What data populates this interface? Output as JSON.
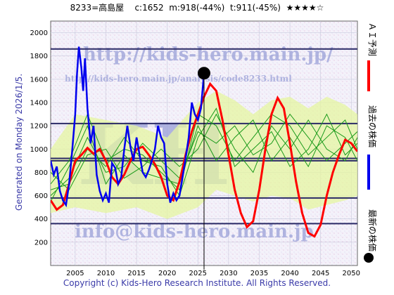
{
  "header": {
    "code_name": "8233=高島屋",
    "current": "c:1652",
    "max_stat": "m:918(-44%)",
    "target_stat": "t:911(-45%)",
    "stars": "★★★★☆"
  },
  "side_label": "Generated on Monday 2026/1/5.",
  "footer": "Copyright (c) Kids-Hero Research Institute. All Rights Reserved.",
  "watermarks": {
    "url_main": "http://kids-hero.main.jp/",
    "url_analysis": "http://kids-hero.main.jp/analysis/code8233.html",
    "logo": "KH",
    "email": "info@kids-hero.main.jp"
  },
  "legend": {
    "ai_forecast": "ＡＩ予測",
    "past_price": "過去の株価",
    "latest_price": "最新の株価"
  },
  "colors": {
    "past": "#0000ee",
    "ai": "#ff0000",
    "green": "#1a9a1a",
    "band": "#e6f5a0",
    "hline": "#2a2a66",
    "dot": "#000000"
  },
  "chart_data": {
    "type": "line",
    "title": "",
    "xlabel": "",
    "ylabel": "",
    "xlim": [
      2001,
      2051
    ],
    "ylim": [
      0,
      2100
    ],
    "x_ticks": [
      2005,
      2010,
      2015,
      2020,
      2025,
      2030,
      2035,
      2040,
      2045,
      2050
    ],
    "y_ticks": [
      200,
      400,
      600,
      800,
      1000,
      1200,
      1400,
      1600,
      1800,
      2000
    ],
    "horizontal_lines": [
      360,
      580,
      900,
      920,
      1220,
      1860
    ],
    "latest_point": {
      "x": 2026.0,
      "y": 1652
    },
    "now_line_x": 2026.0,
    "series": [
      {
        "name": "過去の株価",
        "x": [
          2001.0,
          2001.5,
          2002.0,
          2002.5,
          2003.0,
          2003.5,
          2004.0,
          2004.5,
          2005.0,
          2005.3,
          2005.6,
          2006.0,
          2006.3,
          2006.6,
          2007.0,
          2007.5,
          2008.0,
          2008.5,
          2009.0,
          2009.5,
          2010.0,
          2010.5,
          2011.0,
          2011.5,
          2012.0,
          2012.5,
          2013.0,
          2013.5,
          2014.0,
          2014.5,
          2015.0,
          2015.5,
          2016.0,
          2016.5,
          2017.0,
          2017.5,
          2018.0,
          2018.5,
          2019.0,
          2019.5,
          2020.0,
          2020.5,
          2021.0,
          2021.5,
          2022.0,
          2022.5,
          2023.0,
          2023.5,
          2024.0,
          2024.5,
          2025.0,
          2025.5,
          2026.0
        ],
        "y": [
          900,
          780,
          850,
          640,
          560,
          520,
          700,
          980,
          1300,
          1650,
          1880,
          1700,
          1500,
          1780,
          1350,
          1050,
          1200,
          780,
          640,
          560,
          620,
          540,
          880,
          840,
          700,
          760,
          1000,
          1200,
          1020,
          900,
          1100,
          950,
          800,
          760,
          820,
          900,
          1000,
          1200,
          1100,
          1050,
          700,
          540,
          620,
          560,
          600,
          760,
          920,
          1100,
          1400,
          1300,
          1250,
          1350,
          1652
        ]
      },
      {
        "name": "ＡＩ予測",
        "x": [
          2001.0,
          2002.0,
          2003.0,
          2004.0,
          2005.0,
          2006.0,
          2007.0,
          2008.0,
          2009.0,
          2010.0,
          2011.0,
          2012.0,
          2013.0,
          2014.0,
          2015.0,
          2016.0,
          2017.0,
          2018.0,
          2019.0,
          2020.0,
          2021.0,
          2022.0,
          2023.0,
          2024.0,
          2025.0,
          2026.0,
          2027.0,
          2028.0,
          2029.0,
          2030.0,
          2031.0,
          2032.0,
          2033.0,
          2034.0,
          2035.0,
          2036.0,
          2037.0,
          2038.0,
          2039.0,
          2040.0,
          2041.0,
          2042.0,
          2043.0,
          2044.0,
          2045.0,
          2046.0,
          2047.0,
          2048.0,
          2049.0,
          2050.0,
          2051.0
        ],
        "y": [
          560,
          480,
          520,
          700,
          900,
          950,
          1010,
          960,
          1000,
          900,
          760,
          700,
          780,
          900,
          1000,
          1020,
          950,
          870,
          760,
          600,
          560,
          720,
          950,
          1150,
          1300,
          1450,
          1560,
          1500,
          1250,
          950,
          650,
          450,
          330,
          380,
          650,
          1000,
          1300,
          1440,
          1350,
          1050,
          720,
          450,
          280,
          250,
          350,
          600,
          800,
          950,
          1080,
          1050,
          980
        ]
      }
    ],
    "forecast_band": {
      "name": "",
      "x": [
        2001,
        2005,
        2010,
        2015,
        2020,
        2025,
        2028,
        2031,
        2034,
        2037,
        2040,
        2043,
        2046,
        2049,
        2051
      ],
      "upper": [
        1000,
        1300,
        1250,
        1200,
        1100,
        1400,
        1500,
        1420,
        1300,
        1420,
        1450,
        1350,
        1450,
        1380,
        1300
      ],
      "lower": [
        450,
        500,
        450,
        500,
        400,
        500,
        650,
        600,
        550,
        600,
        580,
        480,
        520,
        560,
        600
      ]
    },
    "green_traces": [
      {
        "x": [
          2001,
          2004,
          2007,
          2010,
          2013,
          2016,
          2019,
          2022,
          2025,
          2028,
          2031,
          2034,
          2037,
          2040,
          2043,
          2046,
          2049,
          2051
        ],
        "y": [
          700,
          900,
          1300,
          900,
          1000,
          950,
          800,
          650,
          1300,
          1200,
          900,
          1100,
          1300,
          1200,
          950,
          1100,
          1250,
          1000
        ]
      },
      {
        "x": [
          2001,
          2004,
          2007,
          2010,
          2013,
          2016,
          2019,
          2022,
          2025,
          2028,
          2031,
          2034,
          2037,
          2040,
          2043,
          2046,
          2049,
          2051
        ],
        "y": [
          600,
          750,
          1100,
          800,
          850,
          1050,
          900,
          750,
          1150,
          1050,
          1200,
          950,
          1050,
          1300,
          1100,
          900,
          1050,
          1150
        ]
      },
      {
        "x": [
          2001,
          2004,
          2007,
          2010,
          2013,
          2016,
          2019,
          2022,
          2025,
          2028,
          2031,
          2034,
          2037,
          2040,
          2043,
          2046,
          2049,
          2051
        ],
        "y": [
          800,
          650,
          950,
          1000,
          750,
          850,
          1000,
          850,
          1000,
          1300,
          1000,
          800,
          1200,
          1000,
          1250,
          1000,
          900,
          1100
        ]
      },
      {
        "x": [
          2001,
          2004,
          2007,
          2010,
          2013,
          2016,
          2019,
          2022,
          2025,
          2028,
          2031,
          2034,
          2037,
          2040,
          2043,
          2046,
          2049,
          2051
        ],
        "y": [
          550,
          850,
          1200,
          700,
          950,
          800,
          750,
          700,
          1200,
          900,
          1100,
          1250,
          900,
          1100,
          850,
          1200,
          1100,
          900
        ]
      },
      {
        "x": [
          2001,
          2004,
          2007,
          2010,
          2013,
          2016,
          2019,
          2022,
          2025,
          2028,
          2031,
          2034,
          2037,
          2040,
          2043,
          2046,
          2049,
          2051
        ],
        "y": [
          650,
          700,
          1000,
          850,
          1100,
          900,
          850,
          600,
          1100,
          1350,
          850,
          1000,
          1150,
          850,
          1000,
          1300,
          950,
          1050
        ]
      }
    ]
  }
}
